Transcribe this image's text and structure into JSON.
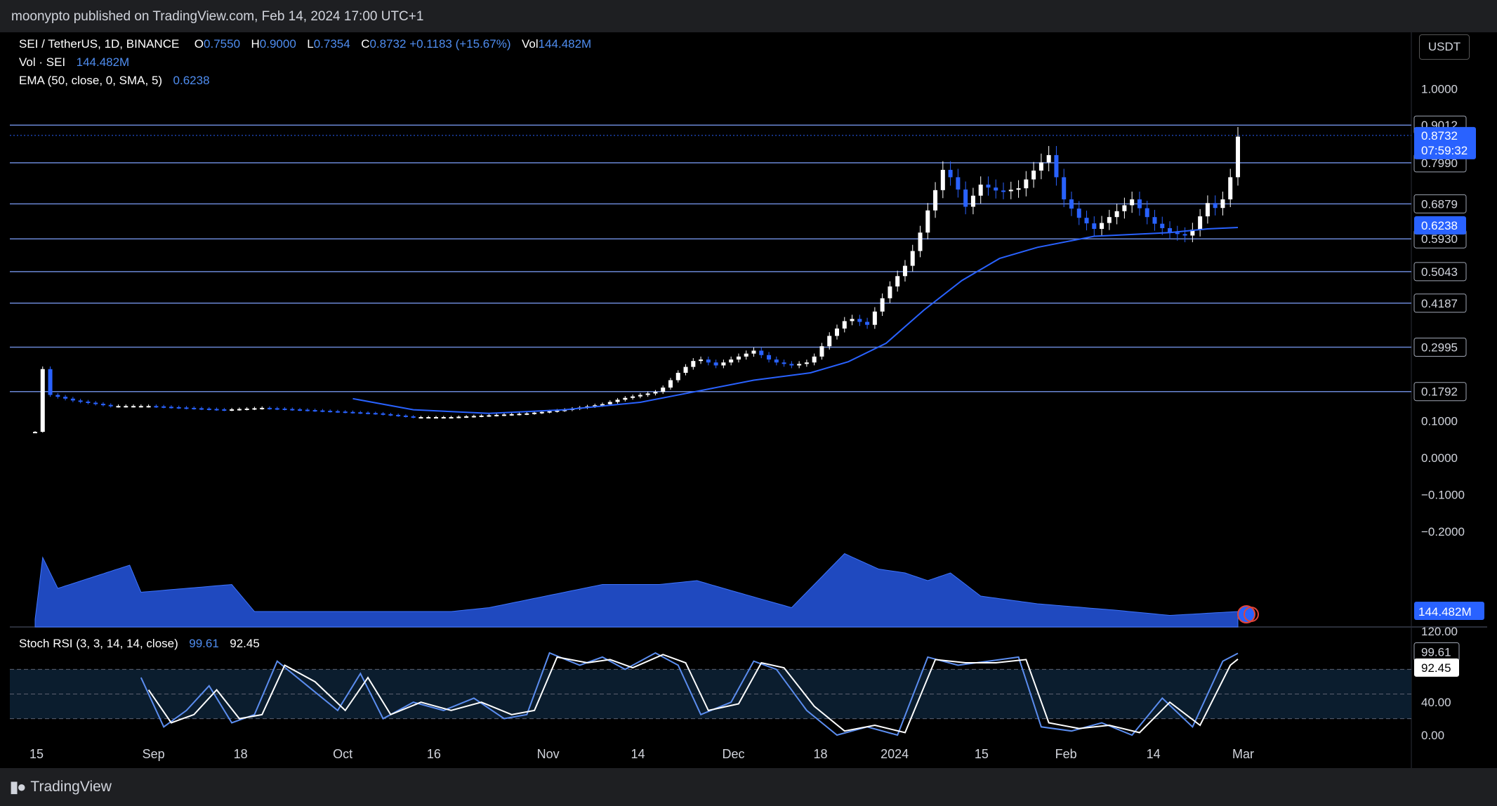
{
  "header": {
    "publisher": "moonypto published on TradingView.com, Feb 14, 2024 17:00 UTC+1"
  },
  "legend": {
    "symbol": "SEI / TetherUS, 1D, BINANCE",
    "o_label": "O",
    "o": "0.7550",
    "h_label": "H",
    "h": "0.9000",
    "l_label": "L",
    "l": "0.7354",
    "c_label": "C",
    "c": "0.8732",
    "change": "+0.1183 (+15.67%)",
    "vol_label": "Vol",
    "vol": "144.482M",
    "vol_indicator": "Vol · SEI",
    "vol_indicator_value": "144.482M",
    "ema_indicator": "EMA (50, close, 0, SMA, 5)",
    "ema_value": "0.6238",
    "stoch_indicator": "Stoch RSI (3, 3, 14, 14, close)",
    "stoch_k": "99.61",
    "stoch_d": "92.45"
  },
  "currency_button": "USDT",
  "footer": {
    "brand": "TradingView"
  },
  "colors": {
    "up": "#ffffff",
    "down": "#2962ff",
    "ema": "#2962ff",
    "volume": "#2962ff",
    "level_line": "#6a86d4",
    "stoch_k": "#5b8def",
    "stoch_d": "#ffffff",
    "background": "#000000"
  },
  "chart_data": [
    {
      "type": "candlestick",
      "title": "SEI / TetherUS, 1D, BINANCE",
      "x_tick_labels": [
        "15",
        "Sep",
        "18",
        "Oct",
        "16",
        "Nov",
        "14",
        "Dec",
        "18",
        "2024",
        "15",
        "Feb",
        "14",
        "Mar"
      ],
      "price_axis_labels": [
        "1.0000",
        "0.1000",
        "0.0000",
        "−0.1000",
        "−0.2000"
      ],
      "ylim": [
        -0.2,
        1.05
      ],
      "horizontal_levels": [
        0.9012,
        0.799,
        0.6879,
        0.593,
        0.5043,
        0.4187,
        0.2995,
        0.1792
      ],
      "level_labels": [
        "0.9012",
        "0.7990",
        "0.6879",
        "0.5930",
        "0.5043",
        "0.4187",
        "0.2995",
        "0.1792"
      ],
      "last_price": {
        "value": 0.8732,
        "label": "0.8732",
        "countdown": "07:59:32"
      },
      "ema": {
        "value": 0.6238,
        "label": "0.6238"
      },
      "volume_label": "144.482M",
      "price_path": [
        [
          0,
          0.07
        ],
        [
          1,
          0.18
        ],
        [
          2,
          0.24
        ],
        [
          4,
          0.17
        ],
        [
          10,
          0.155
        ],
        [
          20,
          0.14
        ],
        [
          30,
          0.14
        ],
        [
          40,
          0.135
        ],
        [
          50,
          0.13
        ],
        [
          60,
          0.135
        ],
        [
          70,
          0.13
        ],
        [
          80,
          0.125
        ],
        [
          90,
          0.12
        ],
        [
          100,
          0.11
        ],
        [
          110,
          0.11
        ],
        [
          120,
          0.115
        ],
        [
          130,
          0.12
        ],
        [
          140,
          0.13
        ],
        [
          150,
          0.145
        ],
        [
          155,
          0.16
        ],
        [
          160,
          0.17
        ],
        [
          165,
          0.18
        ],
        [
          170,
          0.23
        ],
        [
          175,
          0.27
        ],
        [
          180,
          0.25
        ],
        [
          185,
          0.27
        ],
        [
          190,
          0.29
        ],
        [
          195,
          0.26
        ],
        [
          200,
          0.25
        ],
        [
          205,
          0.26
        ],
        [
          210,
          0.33
        ],
        [
          215,
          0.38
        ],
        [
          220,
          0.36
        ],
        [
          225,
          0.45
        ],
        [
          230,
          0.52
        ],
        [
          233,
          0.58
        ],
        [
          236,
          0.67
        ],
        [
          240,
          0.78
        ],
        [
          243,
          0.75
        ],
        [
          246,
          0.68
        ],
        [
          250,
          0.74
        ],
        [
          255,
          0.72
        ],
        [
          260,
          0.73
        ],
        [
          265,
          0.79
        ],
        [
          268,
          0.82
        ],
        [
          272,
          0.7
        ],
        [
          276,
          0.65
        ],
        [
          280,
          0.62
        ],
        [
          285,
          0.66
        ],
        [
          290,
          0.7
        ],
        [
          295,
          0.64
        ],
        [
          300,
          0.61
        ],
        [
          305,
          0.6
        ],
        [
          310,
          0.69
        ],
        [
          313,
          0.67
        ],
        [
          316,
          0.76
        ],
        [
          318,
          0.87
        ]
      ],
      "ema_path": [
        [
          84,
          0.16
        ],
        [
          100,
          0.13
        ],
        [
          120,
          0.12
        ],
        [
          140,
          0.13
        ],
        [
          160,
          0.15
        ],
        [
          175,
          0.18
        ],
        [
          190,
          0.21
        ],
        [
          205,
          0.23
        ],
        [
          215,
          0.26
        ],
        [
          225,
          0.31
        ],
        [
          235,
          0.4
        ],
        [
          245,
          0.48
        ],
        [
          255,
          0.54
        ],
        [
          265,
          0.57
        ],
        [
          280,
          0.6
        ],
        [
          300,
          0.61
        ],
        [
          310,
          0.62
        ],
        [
          318,
          0.6238
        ]
      ],
      "volume_peaks": [
        [
          0,
          0.1
        ],
        [
          2,
          0.9
        ],
        [
          6,
          0.5
        ],
        [
          25,
          0.8
        ],
        [
          28,
          0.45
        ],
        [
          52,
          0.55
        ],
        [
          58,
          0.2
        ],
        [
          110,
          0.2
        ],
        [
          120,
          0.25
        ],
        [
          150,
          0.55
        ],
        [
          165,
          0.55
        ],
        [
          175,
          0.6
        ],
        [
          182,
          0.5
        ],
        [
          200,
          0.25
        ],
        [
          214,
          0.95
        ],
        [
          223,
          0.75
        ],
        [
          230,
          0.7
        ],
        [
          236,
          0.6
        ],
        [
          242,
          0.7
        ],
        [
          250,
          0.4
        ],
        [
          265,
          0.3
        ],
        [
          285,
          0.22
        ],
        [
          300,
          0.15
        ],
        [
          318,
          0.2
        ]
      ]
    },
    {
      "type": "line",
      "title": "Stoch RSI (3, 3, 14, 14, close)",
      "ylim": [
        0,
        100
      ],
      "axis_labels": [
        "120.00",
        "40.00",
        "0.00"
      ],
      "band_upper": 80,
      "band_lower": 20,
      "k_label": "99.61",
      "d_label": "92.45",
      "series": [
        {
          "name": "K",
          "points": [
            [
              28,
              70
            ],
            [
              34,
              10
            ],
            [
              40,
              30
            ],
            [
              46,
              60
            ],
            [
              52,
              15
            ],
            [
              58,
              25
            ],
            [
              64,
              90
            ],
            [
              72,
              60
            ],
            [
              80,
              30
            ],
            [
              86,
              75
            ],
            [
              92,
              20
            ],
            [
              100,
              40
            ],
            [
              108,
              30
            ],
            [
              116,
              45
            ],
            [
              124,
              20
            ],
            [
              130,
              25
            ],
            [
              136,
              100
            ],
            [
              144,
              85
            ],
            [
              150,
              95
            ],
            [
              156,
              80
            ],
            [
              164,
              100
            ],
            [
              170,
              85
            ],
            [
              176,
              25
            ],
            [
              184,
              40
            ],
            [
              190,
              90
            ],
            [
              196,
              80
            ],
            [
              204,
              30
            ],
            [
              212,
              0
            ],
            [
              220,
              10
            ],
            [
              228,
              0
            ],
            [
              236,
              95
            ],
            [
              244,
              85
            ],
            [
              252,
              90
            ],
            [
              260,
              95
            ],
            [
              266,
              10
            ],
            [
              274,
              5
            ],
            [
              282,
              15
            ],
            [
              290,
              0
            ],
            [
              298,
              45
            ],
            [
              306,
              10
            ],
            [
              314,
              90
            ],
            [
              318,
              99.61
            ]
          ]
        },
        {
          "name": "D",
          "points": [
            [
              30,
              55
            ],
            [
              36,
              15
            ],
            [
              42,
              25
            ],
            [
              48,
              55
            ],
            [
              54,
              20
            ],
            [
              60,
              25
            ],
            [
              66,
              85
            ],
            [
              74,
              65
            ],
            [
              82,
              30
            ],
            [
              88,
              70
            ],
            [
              94,
              25
            ],
            [
              102,
              40
            ],
            [
              110,
              30
            ],
            [
              118,
              40
            ],
            [
              126,
              25
            ],
            [
              132,
              30
            ],
            [
              138,
              95
            ],
            [
              146,
              88
            ],
            [
              152,
              92
            ],
            [
              158,
              82
            ],
            [
              166,
              98
            ],
            [
              172,
              88
            ],
            [
              178,
              30
            ],
            [
              186,
              38
            ],
            [
              192,
              88
            ],
            [
              198,
              82
            ],
            [
              206,
              35
            ],
            [
              214,
              5
            ],
            [
              222,
              12
            ],
            [
              230,
              3
            ],
            [
              238,
              92
            ],
            [
              246,
              88
            ],
            [
              254,
              88
            ],
            [
              262,
              92
            ],
            [
              268,
              15
            ],
            [
              276,
              8
            ],
            [
              284,
              12
            ],
            [
              292,
              3
            ],
            [
              300,
              40
            ],
            [
              308,
              12
            ],
            [
              316,
              85
            ],
            [
              318,
              92.45
            ]
          ]
        }
      ]
    }
  ]
}
